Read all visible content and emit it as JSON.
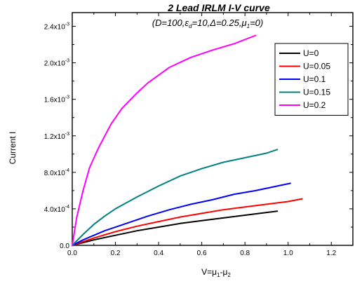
{
  "chart_data": {
    "type": "line",
    "title": "2 Lead IRLM I-V curve",
    "subtitle_parts": [
      "(D=100,",
      "ε",
      "d",
      "=10,",
      "Δ",
      "=0.25,",
      "μ",
      "1",
      "=0)"
    ],
    "xlabel_parts": [
      "V=",
      "μ",
      "1",
      "-",
      "μ",
      "2"
    ],
    "ylabel": "Current I",
    "xlim": [
      0.0,
      1.3
    ],
    "ylim": [
      0.0,
      0.00255
    ],
    "x_ticks": [
      0.0,
      0.2,
      0.4,
      0.6,
      0.8,
      1.0,
      1.2
    ],
    "x_tick_labels": [
      "0.0",
      "0.2",
      "0.4",
      "0.6",
      "0.8",
      "1.0",
      "1.2"
    ],
    "y_ticks": [
      {
        "value": 0.0,
        "mantissa": "0.0",
        "exponent": ""
      },
      {
        "value": 0.0004,
        "mantissa": "4.0x10",
        "exponent": "-4"
      },
      {
        "value": 0.0008,
        "mantissa": "8.0x10",
        "exponent": "-4"
      },
      {
        "value": 0.0012,
        "mantissa": "1.2x10",
        "exponent": "-3"
      },
      {
        "value": 0.0016,
        "mantissa": "1.6x10",
        "exponent": "-3"
      },
      {
        "value": 0.002,
        "mantissa": "2.0x10",
        "exponent": "-3"
      },
      {
        "value": 0.0024,
        "mantissa": "2.4x10",
        "exponent": "-3"
      }
    ],
    "grid": false,
    "legend_position": "top-right",
    "series": [
      {
        "name": "U=0",
        "color": "#000000",
        "x": [
          0.0,
          0.05,
          0.1,
          0.2,
          0.3,
          0.4,
          0.5,
          0.6,
          0.7,
          0.8,
          0.95
        ],
        "y": [
          0.0,
          3e-05,
          6e-05,
          0.00011,
          0.00016,
          0.0002,
          0.00024,
          0.00027,
          0.0003,
          0.00033,
          0.000375
        ]
      },
      {
        "name": "U=0.05",
        "color": "#ff0000",
        "x": [
          0.0,
          0.05,
          0.1,
          0.2,
          0.3,
          0.4,
          0.5,
          0.6,
          0.7,
          0.8,
          0.9,
          1.0,
          1.065
        ],
        "y": [
          0.0,
          4e-05,
          8e-05,
          0.00015,
          0.00021,
          0.00026,
          0.00031,
          0.00035,
          0.00039,
          0.00042,
          0.00045,
          0.00048,
          0.00051
        ]
      },
      {
        "name": "U=0.1",
        "color": "#0000ff",
        "x": [
          0.0,
          0.05,
          0.1,
          0.15,
          0.25,
          0.35,
          0.45,
          0.55,
          0.65,
          0.75,
          0.85,
          0.95,
          1.01
        ],
        "y": [
          0.0,
          6e-05,
          0.00011,
          0.00016,
          0.00024,
          0.00032,
          0.00039,
          0.00045,
          0.0005,
          0.00056,
          0.0006,
          0.00065,
          0.00068
        ]
      },
      {
        "name": "U=0.15",
        "color": "#008080",
        "x": [
          0.0,
          0.05,
          0.1,
          0.15,
          0.2,
          0.3,
          0.4,
          0.5,
          0.6,
          0.7,
          0.8,
          0.9,
          0.95
        ],
        "y": [
          0.0,
          0.00012,
          0.00023,
          0.00032,
          0.0004,
          0.00053,
          0.00065,
          0.00076,
          0.00084,
          0.00091,
          0.00096,
          0.00101,
          0.00105
        ]
      },
      {
        "name": "U=0.2",
        "color": "#ff00ff",
        "x": [
          0.0,
          0.02,
          0.05,
          0.08,
          0.12,
          0.18,
          0.23,
          0.3,
          0.35,
          0.45,
          0.55,
          0.65,
          0.75,
          0.85
        ],
        "y": [
          0.0,
          0.0003,
          0.0006,
          0.00085,
          0.00106,
          0.00133,
          0.0015,
          0.00167,
          0.00178,
          0.00195,
          0.00206,
          0.00214,
          0.00221,
          0.0023
        ]
      }
    ]
  }
}
